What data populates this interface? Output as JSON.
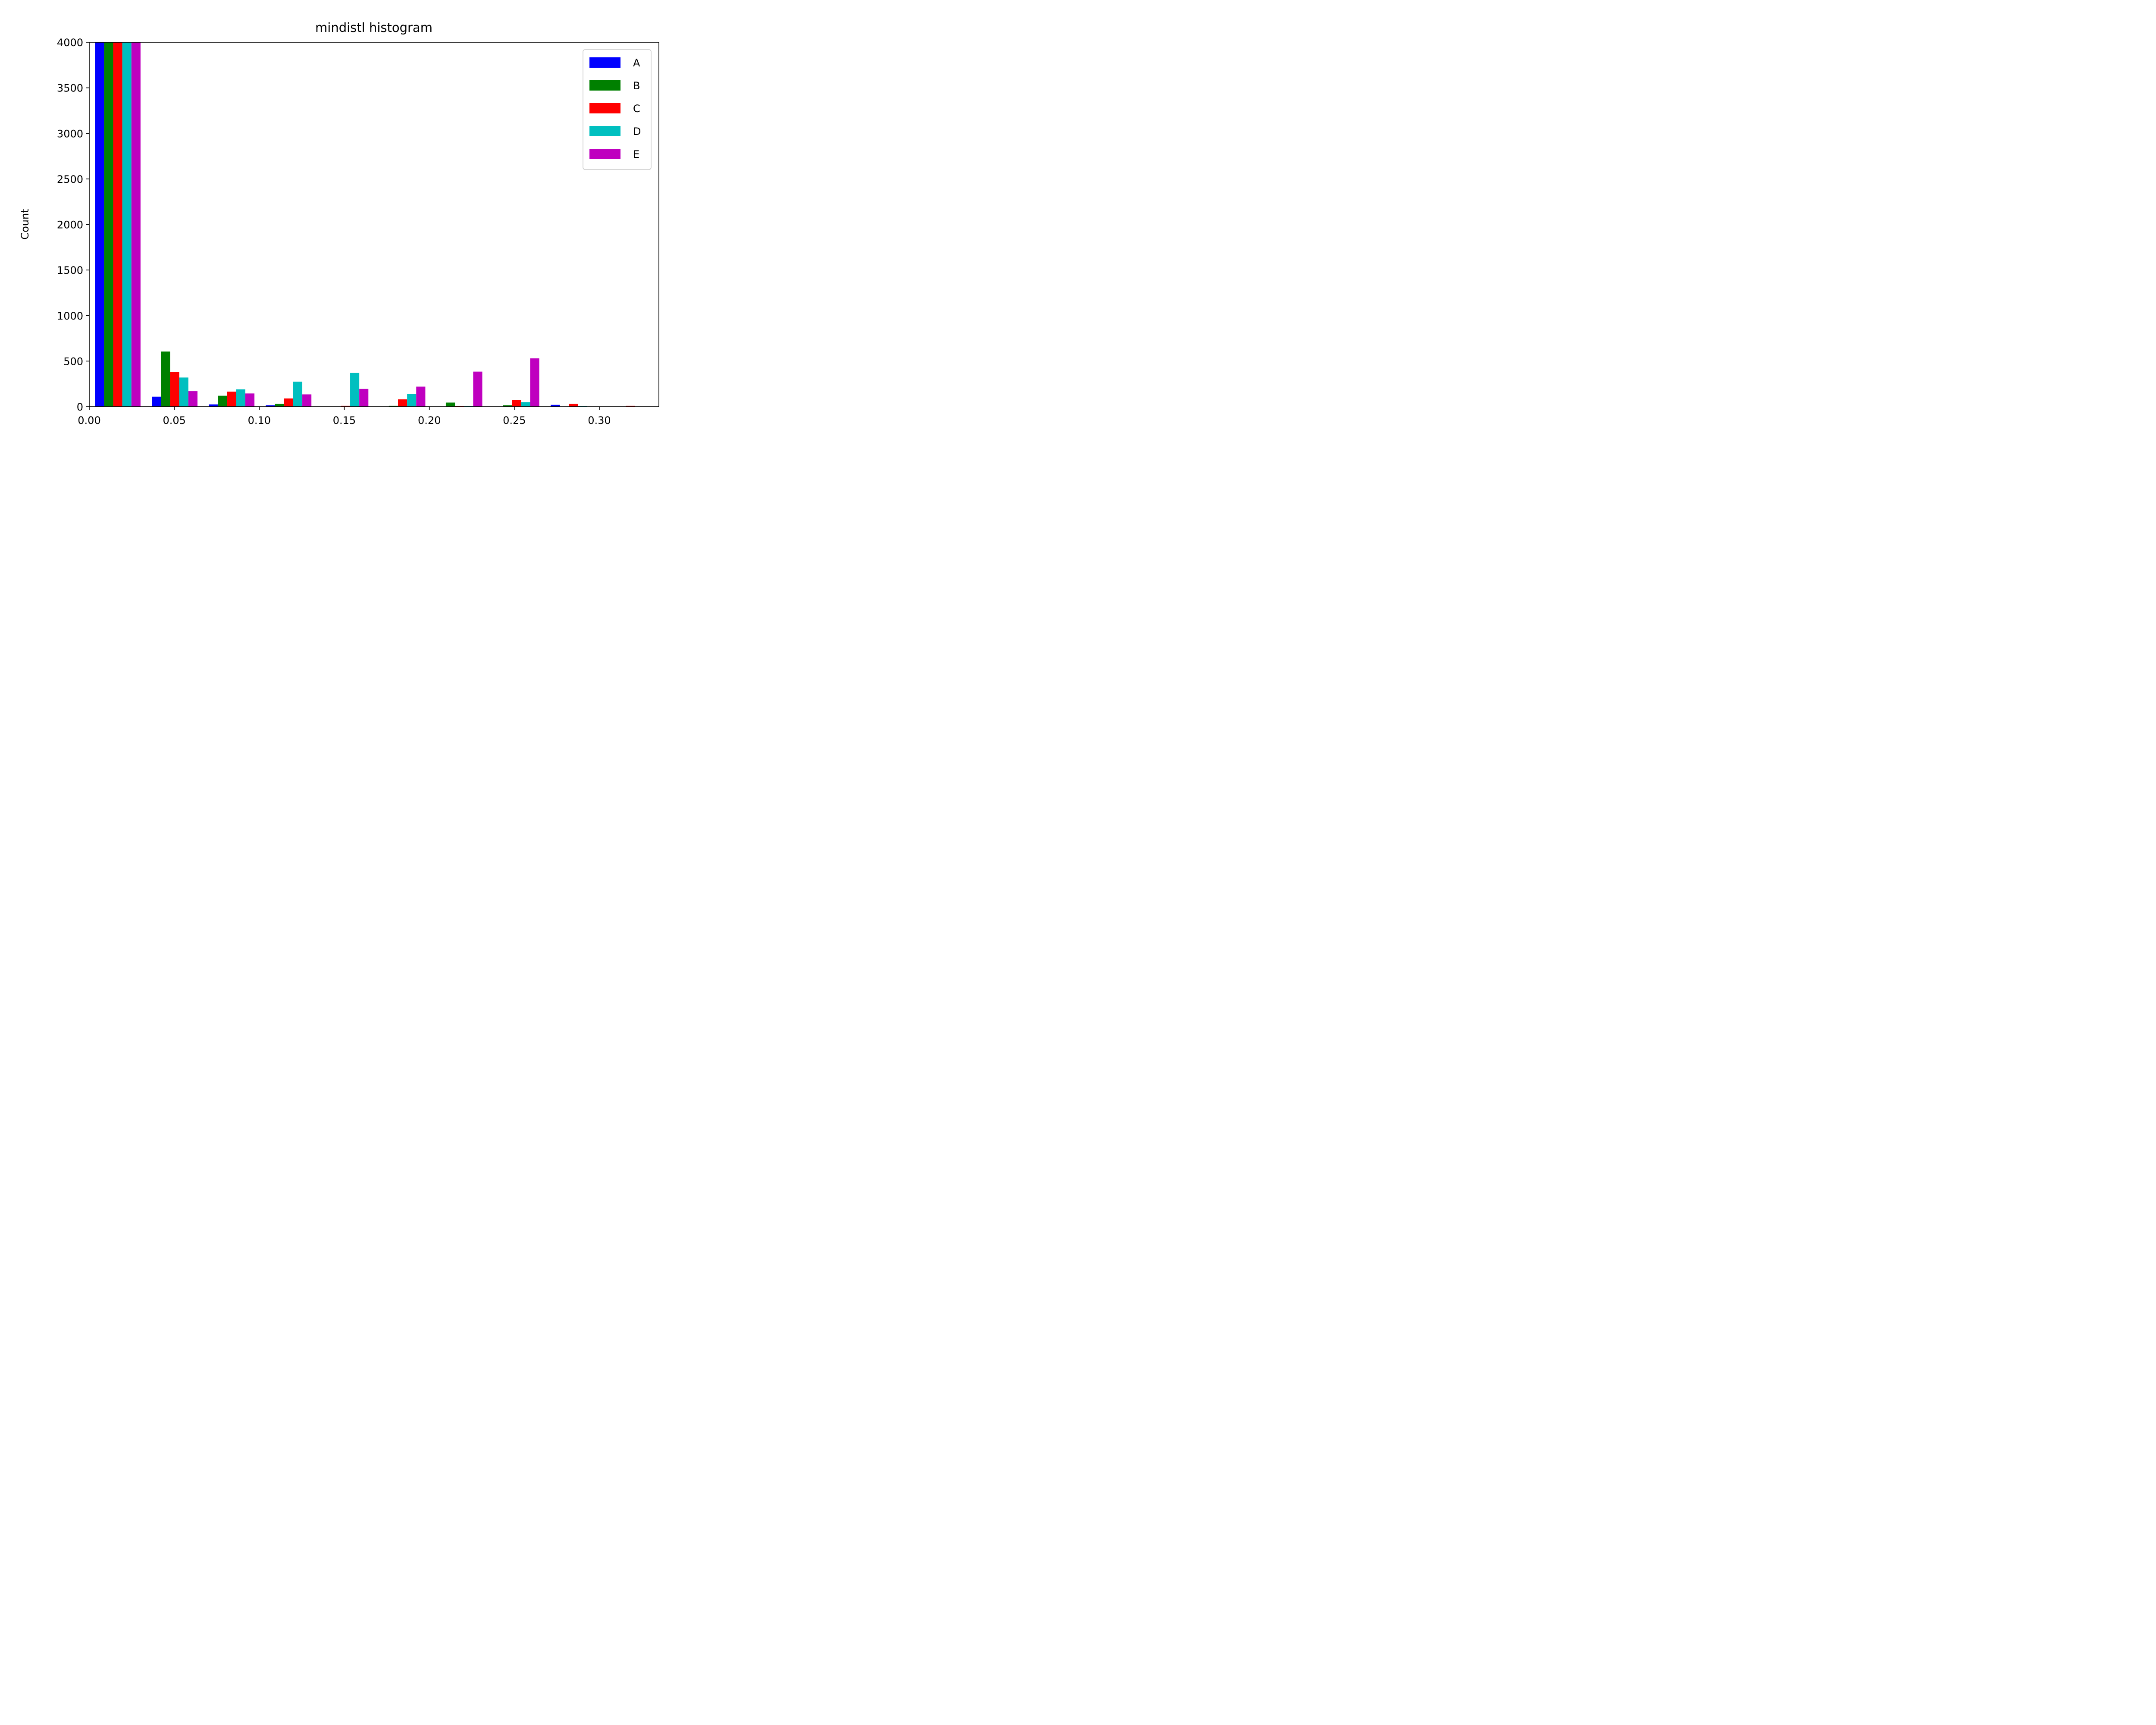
{
  "chart_data": {
    "type": "bar",
    "title": "mindistl histogram",
    "xlabel": "",
    "ylabel": "Count",
    "xlim": [
      0.0,
      0.335
    ],
    "ylim": [
      0,
      4000
    ],
    "xticks": [
      "0.00",
      "0.05",
      "0.10",
      "0.15",
      "0.20",
      "0.25",
      "0.30"
    ],
    "yticks": [
      "0",
      "500",
      "1000",
      "1500",
      "2000",
      "2500",
      "3000",
      "3500",
      "4000"
    ],
    "grid": false,
    "legend_position": "upper-right",
    "bin_width": 0.0335,
    "bin_starts": [
      0.0,
      0.0335,
      0.067,
      0.1005,
      0.134,
      0.1675,
      0.201,
      0.2345,
      0.268,
      0.3015
    ],
    "series": [
      {
        "name": "A",
        "color": "#0000ff",
        "values": [
          4000,
          110,
          25,
          15,
          0,
          0,
          0,
          0,
          20,
          0
        ]
      },
      {
        "name": "B",
        "color": "#008000",
        "values": [
          4000,
          605,
          120,
          30,
          0,
          10,
          45,
          15,
          0,
          0
        ]
      },
      {
        "name": "C",
        "color": "#ff0000",
        "values": [
          4000,
          380,
          165,
          90,
          10,
          80,
          5,
          75,
          30,
          10
        ]
      },
      {
        "name": "D",
        "color": "#00bfbf",
        "values": [
          4000,
          320,
          190,
          275,
          370,
          140,
          5,
          50,
          5,
          0
        ]
      },
      {
        "name": "E",
        "color": "#bf00bf",
        "values": [
          4000,
          170,
          145,
          135,
          195,
          220,
          385,
          530,
          0,
          0
        ]
      }
    ]
  }
}
